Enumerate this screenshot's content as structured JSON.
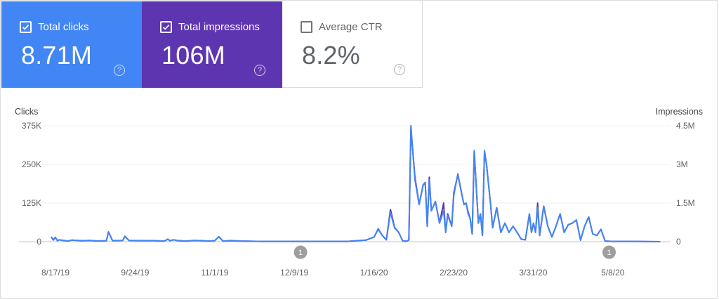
{
  "cards": [
    {
      "label": "Total clicks",
      "value": "8.71M",
      "checked": true,
      "color": "#4285f4"
    },
    {
      "label": "Total impressions",
      "value": "106M",
      "checked": true,
      "color": "#5e35b1"
    },
    {
      "label": "Average CTR",
      "value": "8.2%",
      "checked": false,
      "color": "#ffffff"
    }
  ],
  "help_glyph": "?",
  "chart_data": {
    "type": "line",
    "y_left": {
      "label": "Clicks",
      "ticks": [
        "375K",
        "250K",
        "125K",
        "0"
      ],
      "range": [
        0,
        375000
      ]
    },
    "y_right": {
      "label": "Impressions",
      "ticks": [
        "4.5M",
        "3M",
        "1.5M",
        "0"
      ],
      "range": [
        0,
        4500000
      ]
    },
    "x_ticks": [
      "8/17/19",
      "9/24/19",
      "11/1/19",
      "12/9/19",
      "1/16/20",
      "2/23/20",
      "3/31/20",
      "5/8/20"
    ],
    "x_range": [
      "2019-08-09",
      "2020-06-05"
    ],
    "annotations": [
      {
        "date": "2019-12-09",
        "label": "1"
      },
      {
        "date": "2020-05-08",
        "label": "1"
      }
    ],
    "series": [
      {
        "color": "#4285f4",
        "dates": [
          "2019-08-09",
          "2019-08-10",
          "2019-08-11",
          "2019-08-12",
          "2019-08-13",
          "2019-08-17",
          "2019-08-19",
          "2019-08-24",
          "2019-08-28",
          "2019-09-01",
          "2019-09-05",
          "2019-09-06",
          "2019-09-08",
          "2019-09-13",
          "2019-09-14",
          "2019-09-16",
          "2019-09-21",
          "2019-09-28",
          "2019-10-03",
          "2019-10-04",
          "2019-10-05",
          "2019-10-06",
          "2019-10-08",
          "2019-10-10",
          "2019-10-14",
          "2019-10-18",
          "2019-10-21",
          "2019-10-25",
          "2019-10-28",
          "2019-10-30",
          "2019-11-01",
          "2019-11-05",
          "2019-11-10",
          "2019-11-20",
          "2019-12-01",
          "2019-12-09",
          "2019-12-20",
          "2020-01-01",
          "2020-01-05",
          "2020-01-10",
          "2020-01-14",
          "2020-01-16",
          "2020-01-18",
          "2020-01-20",
          "2020-01-22",
          "2020-01-24",
          "2020-01-26",
          "2020-01-28",
          "2020-01-30",
          "2020-01-31",
          "2020-02-01",
          "2020-02-03",
          "2020-02-05",
          "2020-02-07",
          "2020-02-08",
          "2020-02-09",
          "2020-02-10",
          "2020-02-11",
          "2020-02-13",
          "2020-02-15",
          "2020-02-17",
          "2020-02-18",
          "2020-02-19",
          "2020-02-21",
          "2020-02-22",
          "2020-02-24",
          "2020-02-26",
          "2020-02-27",
          "2020-02-28",
          "2020-02-29",
          "2020-03-01",
          "2020-03-02",
          "2020-03-03",
          "2020-03-05",
          "2020-03-06",
          "2020-03-07",
          "2020-03-08",
          "2020-03-09",
          "2020-03-11",
          "2020-03-12",
          "2020-03-14",
          "2020-03-16",
          "2020-03-18",
          "2020-03-20",
          "2020-03-22",
          "2020-03-24",
          "2020-03-26",
          "2020-03-28",
          "2020-03-30",
          "2020-03-31",
          "2020-04-01",
          "2020-04-02",
          "2020-04-03",
          "2020-04-04",
          "2020-04-06",
          "2020-04-08",
          "2020-04-10",
          "2020-04-12",
          "2020-04-14",
          "2020-04-16",
          "2020-04-18",
          "2020-04-20",
          "2020-04-22",
          "2020-04-24",
          "2020-04-26",
          "2020-04-28",
          "2020-04-30",
          "2020-05-02",
          "2020-05-04",
          "2020-05-06",
          "2020-05-10",
          "2020-05-20",
          "2020-06-02"
        ],
        "values": [
          15000,
          5000,
          14000,
          3000,
          6000,
          2000,
          5000,
          3000,
          4000,
          2000,
          3000,
          32000,
          3000,
          4000,
          18000,
          4000,
          3000,
          3000,
          2000,
          4000,
          8000,
          3000,
          6000,
          3000,
          2000,
          4000,
          3000,
          2000,
          3000,
          16000,
          2000,
          3000,
          2000,
          1000,
          1000,
          1000,
          1000,
          1000,
          3000,
          5000,
          15000,
          40000,
          20000,
          6000,
          95000,
          45000,
          30000,
          2000,
          2000,
          5000,
          375000,
          200000,
          120000,
          185000,
          190000,
          50000,
          200000,
          100000,
          130000,
          60000,
          100000,
          30000,
          85000,
          50000,
          150000,
          220000,
          150000,
          120000,
          125000,
          90000,
          75000,
          25000,
          295000,
          60000,
          90000,
          20000,
          295000,
          250000,
          120000,
          45000,
          110000,
          30000,
          60000,
          30000,
          50000,
          30000,
          8000,
          6000,
          90000,
          30000,
          60000,
          30000,
          110000,
          20000,
          115000,
          50000,
          15000,
          50000,
          90000,
          30000,
          55000,
          60000,
          70000,
          5000,
          50000,
          80000,
          25000,
          20000,
          40000,
          2000,
          1000,
          1000,
          0
        ]
      },
      {
        "color": "#5e35b1",
        "dates": [
          "2019-08-09",
          "2019-08-10",
          "2019-08-11",
          "2019-08-12",
          "2019-08-13",
          "2019-08-17",
          "2019-08-19",
          "2019-08-24",
          "2019-08-28",
          "2019-09-01",
          "2019-09-05",
          "2019-09-06",
          "2019-09-08",
          "2019-09-13",
          "2019-09-14",
          "2019-09-16",
          "2019-09-21",
          "2019-09-28",
          "2019-10-03",
          "2019-10-04",
          "2019-10-05",
          "2019-10-06",
          "2019-10-08",
          "2019-10-10",
          "2019-10-14",
          "2019-10-18",
          "2019-10-21",
          "2019-10-25",
          "2019-10-28",
          "2019-10-30",
          "2019-11-01",
          "2019-11-05",
          "2019-11-10",
          "2019-11-20",
          "2019-12-01",
          "2019-12-09",
          "2019-12-20",
          "2020-01-01",
          "2020-01-05",
          "2020-01-10",
          "2020-01-14",
          "2020-01-16",
          "2020-01-18",
          "2020-01-20",
          "2020-01-22",
          "2020-01-24",
          "2020-01-26",
          "2020-01-28",
          "2020-01-30",
          "2020-01-31",
          "2020-02-01",
          "2020-02-03",
          "2020-02-05",
          "2020-02-07",
          "2020-02-08",
          "2020-02-09",
          "2020-02-10",
          "2020-02-11",
          "2020-02-13",
          "2020-02-15",
          "2020-02-17",
          "2020-02-18",
          "2020-02-19",
          "2020-02-21",
          "2020-02-22",
          "2020-02-24",
          "2020-02-26",
          "2020-02-27",
          "2020-02-28",
          "2020-02-29",
          "2020-03-01",
          "2020-03-02",
          "2020-03-03",
          "2020-03-05",
          "2020-03-06",
          "2020-03-07",
          "2020-03-08",
          "2020-03-09",
          "2020-03-11",
          "2020-03-12",
          "2020-03-14",
          "2020-03-16",
          "2020-03-18",
          "2020-03-20",
          "2020-03-22",
          "2020-03-24",
          "2020-03-26",
          "2020-03-28",
          "2020-03-30",
          "2020-03-31",
          "2020-04-01",
          "2020-04-02",
          "2020-04-03",
          "2020-04-04",
          "2020-04-06",
          "2020-04-08",
          "2020-04-10",
          "2020-04-12",
          "2020-04-14",
          "2020-04-16",
          "2020-04-18",
          "2020-04-20",
          "2020-04-22",
          "2020-04-24",
          "2020-04-26",
          "2020-04-28",
          "2020-04-30",
          "2020-05-02",
          "2020-05-04",
          "2020-05-06",
          "2020-05-10",
          "2020-05-20",
          "2020-06-02"
        ],
        "values": [
          190000,
          70000,
          170000,
          40000,
          70000,
          25000,
          60000,
          40000,
          50000,
          25000,
          40000,
          380000,
          40000,
          50000,
          200000,
          50000,
          40000,
          40000,
          25000,
          50000,
          100000,
          40000,
          70000,
          40000,
          25000,
          50000,
          40000,
          25000,
          40000,
          190000,
          25000,
          40000,
          25000,
          12000,
          12000,
          12000,
          12000,
          12000,
          36000,
          60000,
          180000,
          500000,
          240000,
          72000,
          1250000,
          560000,
          360000,
          24000,
          24000,
          60000,
          4400000,
          2500000,
          1450000,
          2200000,
          2300000,
          600000,
          2500000,
          1200000,
          1560000,
          720000,
          1500000,
          360000,
          1080000,
          600000,
          1900000,
          2600000,
          1800000,
          1440000,
          1500000,
          1150000,
          900000,
          300000,
          3500000,
          720000,
          1080000,
          240000,
          3500000,
          3000000,
          1440000,
          540000,
          1320000,
          360000,
          720000,
          360000,
          600000,
          360000,
          96000,
          72000,
          1080000,
          360000,
          720000,
          360000,
          1500000,
          240000,
          1380000,
          600000,
          180000,
          600000,
          1080000,
          360000,
          660000,
          720000,
          840000,
          60000,
          600000,
          960000,
          300000,
          240000,
          480000,
          24000,
          12000,
          12000,
          0
        ]
      }
    ]
  }
}
